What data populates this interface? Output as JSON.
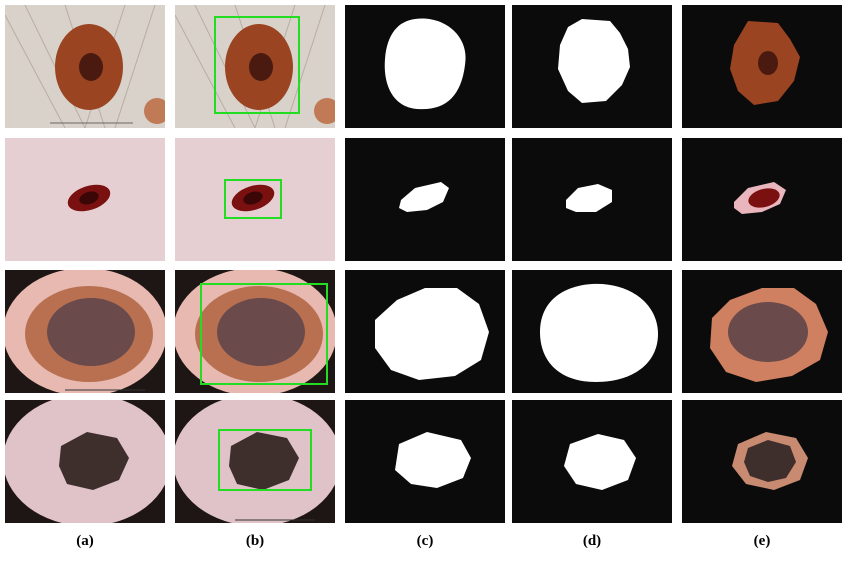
{
  "figure": {
    "column_labels": [
      "(a)",
      "(b)",
      "(c)",
      "(d)",
      "(e)"
    ],
    "column_contents": [
      "dermoscopic image",
      "image with green bounding box",
      "white binary mask",
      "white binary mask",
      "segmented lesion on black"
    ],
    "rows": [
      {
        "lesion_color": "#8a3a1c",
        "skin_color": "#d8d0c8"
      },
      {
        "lesion_color": "#7a1010",
        "skin_color": "#e6cfd2"
      },
      {
        "lesion_color": "#6a4a4a",
        "skin_color": "#e8b9b0"
      },
      {
        "lesion_color": "#3e2e2c",
        "skin_color": "#e0c3c8"
      }
    ],
    "colors": {
      "box": "#22dd22",
      "background": "#0b0b0b",
      "mask": "#ffffff"
    }
  }
}
